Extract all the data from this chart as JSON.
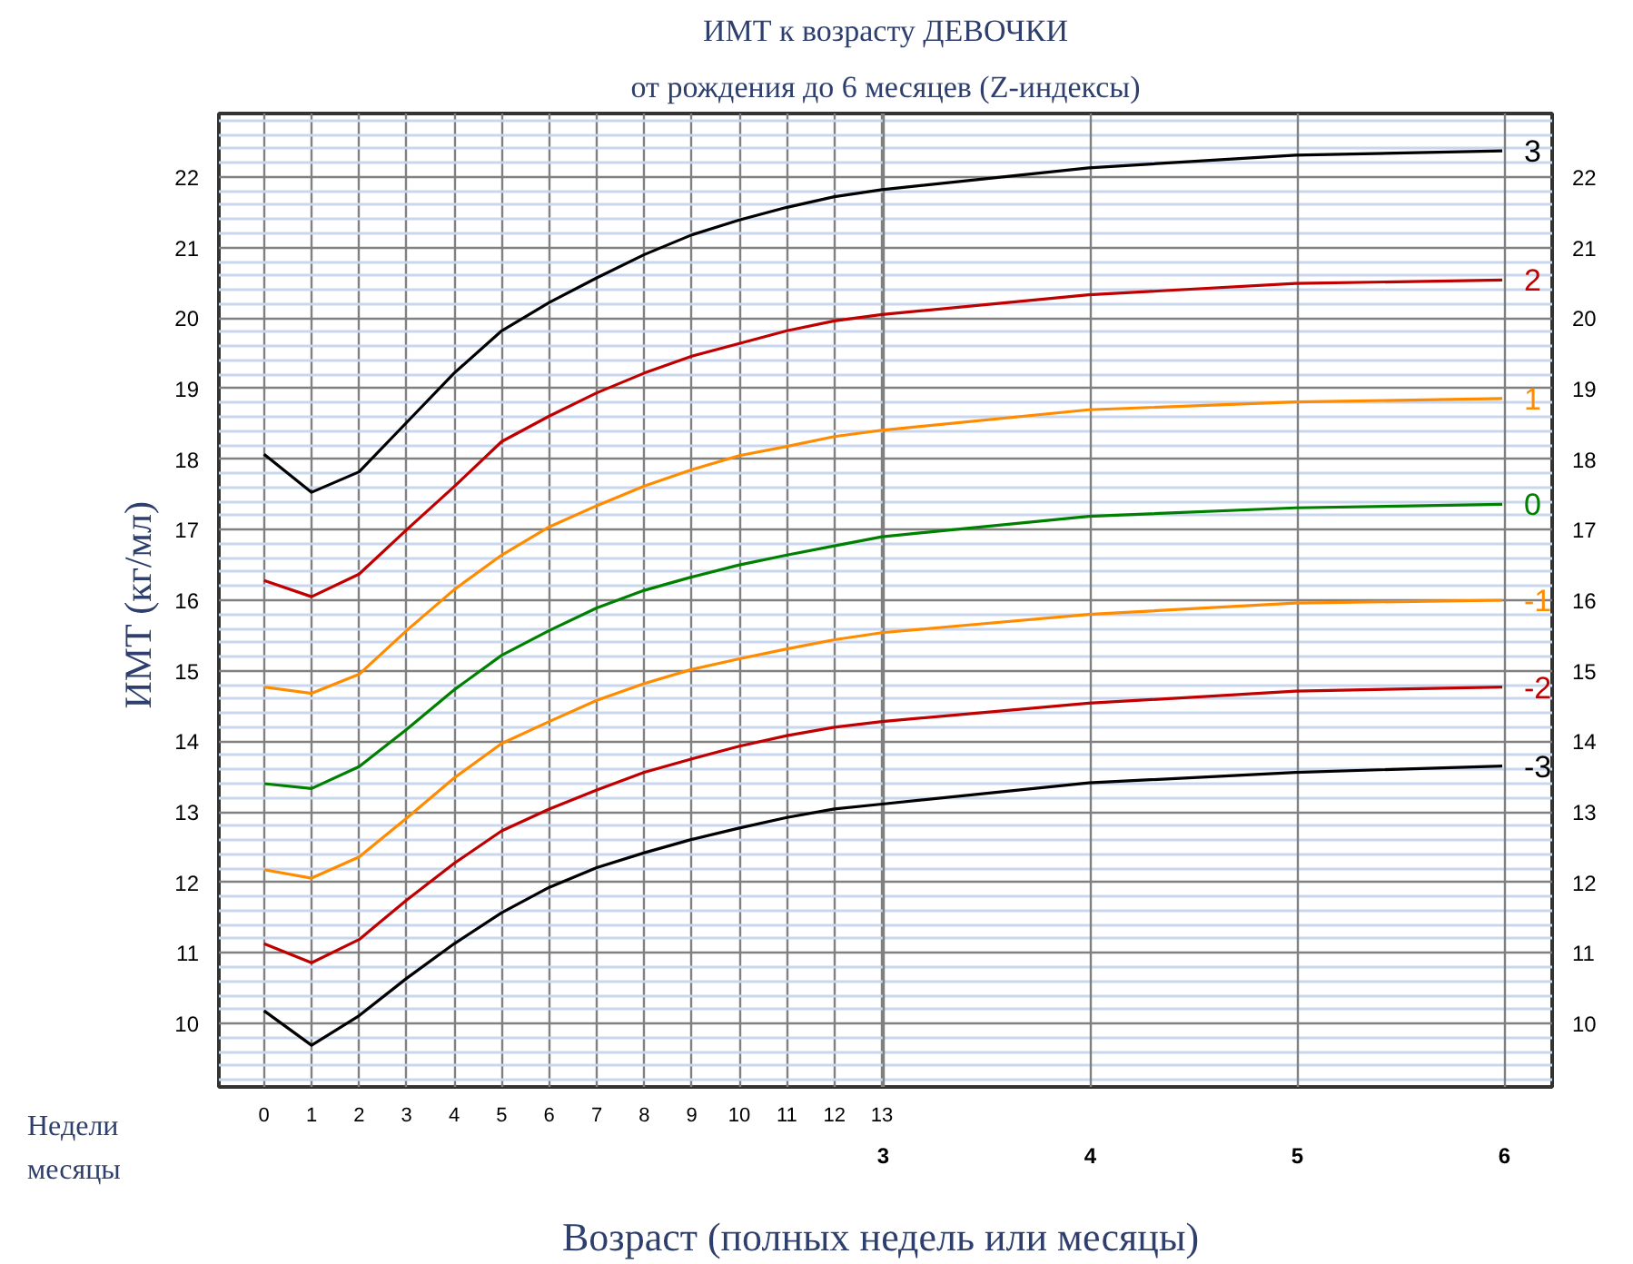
{
  "chart_data": {
    "type": "line",
    "title": "ИМТ к возрасту ДЕВОЧКИ",
    "subtitle": "от рождения до 6 месяцев (Z-индексы)",
    "xlabel": "Возраст  (полных недель или месяцы)",
    "ylabel": "ИМТ  (кг/мл)",
    "annotations": [
      "Недели",
      "месяцы"
    ],
    "x": [
      0,
      1,
      2,
      3,
      4,
      5,
      6,
      7,
      8,
      9,
      10,
      11,
      12,
      13,
      17.35,
      21.7,
      26.05
    ],
    "xlim": [
      -0.95,
      27.1
    ],
    "xticks": [
      0,
      1,
      2,
      3,
      4,
      5,
      6,
      7,
      8,
      9,
      10,
      11,
      12,
      13
    ],
    "x2lim": [
      -0.207,
      6.23
    ],
    "x2ticks": [
      3,
      4,
      5,
      6
    ],
    "ylim": [
      9.1,
      22.9
    ],
    "yticks": [
      10,
      11,
      12,
      13,
      14,
      15,
      16,
      17,
      18,
      19,
      20,
      21,
      22
    ],
    "y2lim": [
      9.1,
      22.9
    ],
    "y2ticks": [
      10,
      11,
      12,
      13,
      14,
      15,
      16,
      17,
      18,
      19,
      20,
      21,
      22
    ],
    "grid": true,
    "legend": false,
    "marker": "none",
    "line_style": "solid",
    "series": [
      {
        "name": "3",
        "color": "#000000",
        "values": [
          18.07,
          17.53,
          17.82,
          18.52,
          19.22,
          19.82,
          20.22,
          20.57,
          20.9,
          21.18,
          21.39,
          21.57,
          21.72,
          21.82,
          22.13,
          22.31,
          22.37
        ]
      },
      {
        "name": "2",
        "color": "#c00000",
        "values": [
          16.28,
          16.05,
          16.37,
          17.0,
          17.61,
          18.25,
          18.61,
          18.94,
          19.22,
          19.46,
          19.64,
          19.82,
          19.96,
          20.05,
          20.33,
          20.49,
          20.54
        ]
      },
      {
        "name": "1",
        "color": "#ff8c00",
        "values": [
          14.77,
          14.68,
          14.95,
          15.57,
          16.15,
          16.64,
          17.04,
          17.34,
          17.62,
          17.85,
          18.05,
          18.18,
          18.32,
          18.41,
          18.7,
          18.81,
          18.86
        ]
      },
      {
        "name": "0",
        "color": "#008000",
        "values": [
          13.4,
          13.33,
          13.64,
          14.17,
          14.73,
          15.22,
          15.57,
          15.89,
          16.14,
          16.33,
          16.5,
          16.64,
          16.77,
          16.9,
          17.19,
          17.31,
          17.36
        ]
      },
      {
        "name": "-1",
        "color": "#ff8c00",
        "values": [
          12.18,
          12.06,
          12.36,
          12.91,
          13.48,
          13.97,
          14.28,
          14.58,
          14.82,
          15.02,
          15.17,
          15.31,
          15.44,
          15.54,
          15.8,
          15.96,
          16.0
        ]
      },
      {
        "name": "-2",
        "color": "#c00000",
        "values": [
          11.13,
          10.86,
          11.19,
          11.75,
          12.27,
          12.73,
          13.04,
          13.31,
          13.56,
          13.75,
          13.93,
          14.08,
          14.2,
          14.28,
          14.54,
          14.71,
          14.77
        ]
      },
      {
        "name": "-3",
        "color": "#000000",
        "values": [
          10.18,
          9.69,
          10.11,
          10.64,
          11.13,
          11.57,
          11.93,
          12.21,
          12.42,
          12.61,
          12.77,
          12.92,
          13.04,
          13.11,
          13.41,
          13.56,
          13.65
        ]
      }
    ]
  }
}
